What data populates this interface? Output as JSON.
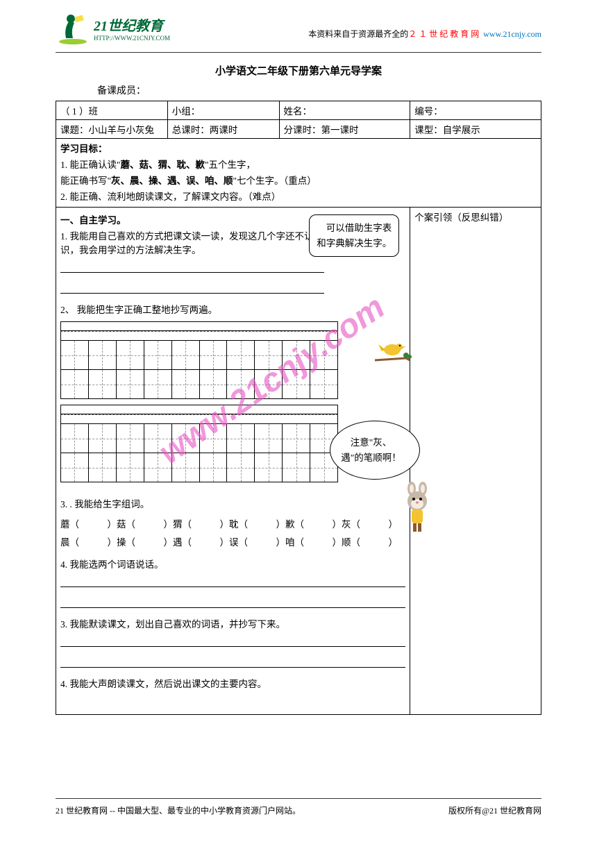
{
  "header": {
    "logo_cn": "21世纪教育",
    "logo_url": "HTTP://WWW.21CNJY.COM",
    "right_text1": "本资料来自于资源最齐全的",
    "right_text2": "２１世纪教育网",
    "right_text3": " www.21cnjy.com"
  },
  "title": "小学语文二年级下册第六单元导学案",
  "prep": "备课成员：",
  "meta": {
    "r1c1": "（ 1 ）班",
    "r1c2": "小组：",
    "r1c3": "姓名：",
    "r1c4": "编号：",
    "r2c1": "课题：小山羊与小灰兔",
    "r2c2": "总课时：两课时",
    "r2c3": "分课时：第一课时",
    "r2c4": "课型：自学展示"
  },
  "goals": {
    "heading": "学习目标：",
    "g1a": "1. 能正确认读\"",
    "g1b": "蘑、菇、猬、耽、歉",
    "g1c": "\"五个生字，",
    "g2a": "   能正确书写\"",
    "g2b": "灰、晨、操、遇、误、咱、顺",
    "g2c": "\"七个生字。（重点）",
    "g3": "2. 能正确、流利地朗读课文，了解课文内容。（难点）"
  },
  "study": {
    "section1": "一、自主学习。",
    "s1": "1. 我能用自己喜欢的方式把课文读一读，发现这几个字还不认识，我会用学过的方法解决生字。",
    "bubble1": "　可以借助生字表和字典解决生字。",
    "s2": "2、 我能把生字正确工整地抄写两遍。",
    "bubble2": "　注意\"灰、遇\"的笔顺啊！",
    "s3": "3. . 我能给生字组词。",
    "words_row1": "蘑（　　　）菇（　　　）猬（　　　）耽（　　　）歉（　　　）灰（　　　）",
    "words_row2": "晨（　　　）操（　　　）遇（　　　）误（　　　）咱（　　　）顺（　　　）",
    "s4": "4. 我能选两个词语说话。",
    "s5": "3.  我能默读课文，划出自己喜欢的词语，并抄写下来。",
    "s6": "4.  我能大声朗读课文，然后说出课文的主要内容。",
    "sidebar": "个案引领（反思纠错）",
    "grid_cols": 10
  },
  "watermark": "www.21cnjy.com",
  "footer": {
    "left": "21 世纪教育网 -- 中国最大型、最专业的中小学教育资源门户网站。",
    "right": "版权所有@21 世纪教育网"
  },
  "colors": {
    "logo_green": "#006837",
    "red": "#ff0000",
    "blue": "#0070c0",
    "watermark": "#e754c4",
    "bird_yellow": "#f4c430",
    "branch": "#8b5a2b",
    "rabbit_grey": "#c8b8a8"
  }
}
